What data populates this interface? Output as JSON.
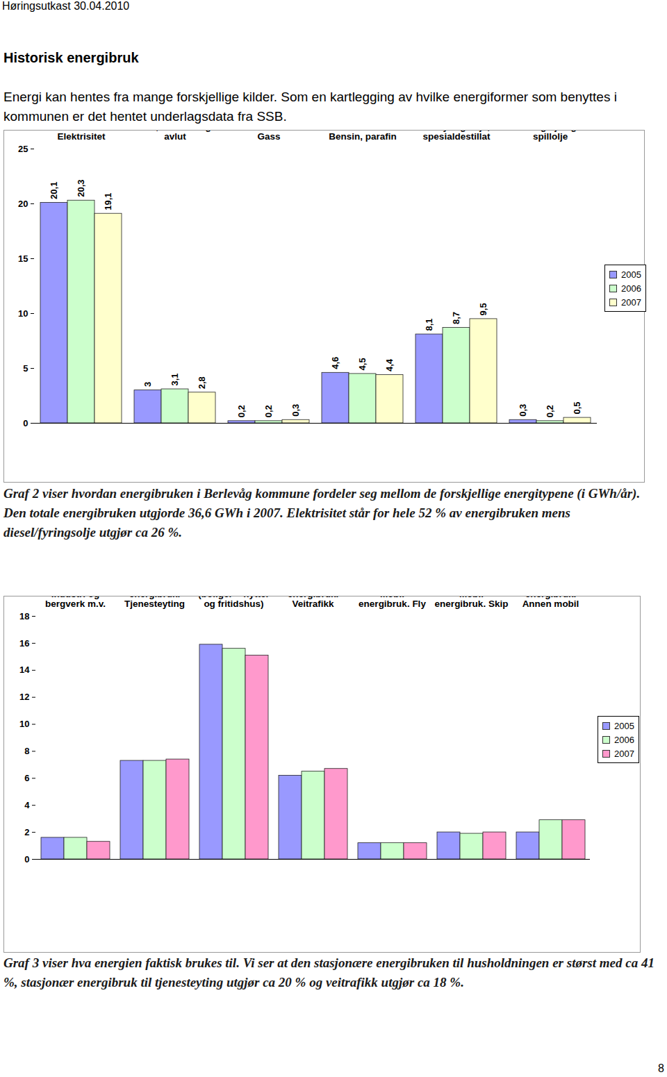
{
  "header": "Høringsutkast 30.04.2010",
  "heading": "Historisk energibruk",
  "paragraph": "Energi kan hentes fra mange forskjellige kilder. Som en kartlegging av hvilke energiformer som benyttes i kommunen er det hentet underlagsdata fra SSB.",
  "captions": [
    "Graf 2 viser hvordan energibruken i Berlevåg kommune fordeler seg mellom de forskjellige energitypene (i GWh/år). Den totale energibruken utgjorde 36,6 GWh i 2007. Elektrisitet står for hele 52 % av energibruken mens diesel/fyringsolje utgjør ca 26 %.",
    "Graf 3 viser hva energien faktisk brukes til. Vi ser at den stasjonære energibruken til husholdningen er størst med ca 41 %, stasjonær energibruk til tjenesteyting utgjør ca 20 % og veitrafikk utgjør ca 18 %."
  ],
  "page_number": "8",
  "chart_data": [
    {
      "type": "bar",
      "categories": [
        "Elektrisitet",
        "Ved, treavfall og avlut",
        "Gass",
        "Bensin, parafin",
        "Diesel-, gass- og lett fyringsolje, spesialdestillat",
        "Tungolje og spillolje"
      ],
      "series": [
        {
          "name": "2005",
          "color": "#9999ff",
          "values": [
            20.1,
            3,
            0.2,
            4.6,
            8.1,
            0.3
          ],
          "value_labels": [
            "20,1",
            "3",
            "0,2",
            "4,6",
            "8,1",
            "0,3"
          ]
        },
        {
          "name": "2006",
          "color": "#ccffcc",
          "values": [
            20.3,
            3.1,
            0.2,
            4.5,
            8.7,
            0.2
          ],
          "value_labels": [
            "20,3",
            "3,1",
            "0,2",
            "4,5",
            "8,7",
            "0,2"
          ]
        },
        {
          "name": "2007",
          "color": "#ffffcc",
          "values": [
            19.1,
            2.8,
            0.3,
            4.4,
            9.5,
            0.5
          ],
          "value_labels": [
            "19,1",
            "2,8",
            "0,3",
            "4,4",
            "9,5",
            "0,5"
          ]
        }
      ],
      "ylim": [
        0,
        25
      ],
      "yticks": [
        0,
        5,
        10,
        15,
        20,
        25
      ],
      "grid": false,
      "legend": "right",
      "data_labels": true
    },
    {
      "type": "bar",
      "categories": [
        "Stasjonær energibruk. Industri og bergverk m.v.",
        "Stasjonær energibruk. Tjenesteyting",
        "Stasjonær energibruk. Husholdninger (boliger + hytter og fritidshus)",
        "Mobil energibruk. Veitrafikk",
        "Mobil energibruk. Fly",
        "Mobil energibruk. Skip",
        "Mobil energibruk. Annen mobil"
      ],
      "series": [
        {
          "name": "2005",
          "color": "#9999ff",
          "values": [
            1.6,
            7.3,
            15.9,
            6.2,
            1.2,
            2.0,
            2.0
          ]
        },
        {
          "name": "2006",
          "color": "#ccffcc",
          "values": [
            1.6,
            7.3,
            15.6,
            6.5,
            1.2,
            1.9,
            2.9
          ]
        },
        {
          "name": "2007",
          "color": "#ff99cc",
          "values": [
            1.3,
            7.4,
            15.1,
            6.7,
            1.2,
            2.0,
            2.9
          ]
        }
      ],
      "ylim": [
        0,
        18
      ],
      "yticks": [
        0,
        2,
        4,
        6,
        8,
        10,
        12,
        14,
        16,
        18
      ],
      "grid": false,
      "legend": "right",
      "data_labels": false
    }
  ]
}
